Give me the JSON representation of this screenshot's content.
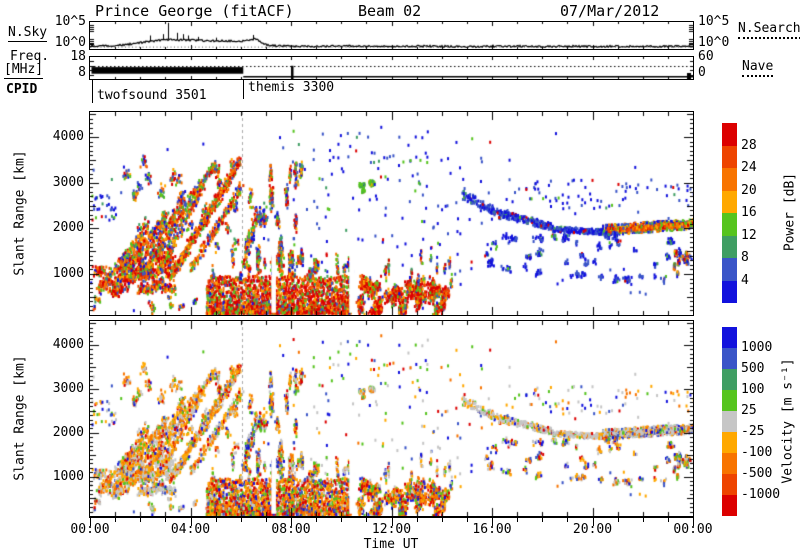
{
  "header": {
    "title": "Prince George (fitACF)",
    "beam": "Beam 02",
    "date": "07/Mar/2012"
  },
  "panels": {
    "nsky": {
      "label_left": "N.Sky",
      "label_right": "N.Search",
      "yticks_left": [
        "10^5",
        "10^0"
      ],
      "yticks_right": [
        "10^5",
        "10^0"
      ]
    },
    "freq": {
      "label_left_1": "Freq.",
      "label_left_2": "[MHz]",
      "label_right": "Nave",
      "yticks_left": [
        "18",
        "8"
      ],
      "yticks_right": [
        "60",
        "0"
      ]
    },
    "cpid": {
      "label": "CPID",
      "programs": [
        {
          "start_hour": 0.08,
          "name": "twofsound 3501"
        },
        {
          "start_hour": 6.08,
          "name": "themis 3300"
        }
      ]
    },
    "power": {
      "ylabel": "Slant Range [km]",
      "yticks": [
        1000,
        2000,
        3000,
        4000
      ]
    },
    "velocity": {
      "ylabel": "Slant Range [km]",
      "yticks": [
        1000,
        2000,
        3000,
        4000
      ]
    }
  },
  "xaxis": {
    "label": "Time UT",
    "tick_labels": [
      "00:00",
      "04:00",
      "08:00",
      "12:00",
      "16:00",
      "20:00",
      "00:00"
    ],
    "hours": 24
  },
  "colorbars": {
    "power": {
      "title": "Power [dB]",
      "tick_labels": [
        "28",
        "24",
        "20",
        "16",
        "12",
        "8",
        "4"
      ],
      "segments": [
        "#dc0000",
        "#ee4400",
        "#f87400",
        "#ffa800",
        "#56c41e",
        "#3f9e63",
        "#3a55c8",
        "#1212dd"
      ]
    },
    "velocity": {
      "title": "Velocity [m s⁻¹]",
      "tick_labels": [
        "1000",
        "500",
        "100",
        "25",
        "-25",
        "-100",
        "-500",
        "-1000"
      ],
      "segments": [
        "#1212dd",
        "#3a55c8",
        "#3f9e63",
        "#56c41e",
        "#c6c6c6",
        "#ffa800",
        "#f87400",
        "#ee4400",
        "#dc0000"
      ]
    }
  },
  "chart_data": {
    "type": "heatmap",
    "title": "SuperDARN Prince George fitACF range-time summary, Beam 02, 07/Mar/2012",
    "x_axis": {
      "label": "Time UT",
      "min_hour": 0,
      "max_hour": 24,
      "major_tick_hours": 4,
      "minor_tick_hours": 1
    },
    "range_axis": {
      "label": "Slant Range [km]",
      "min": 100,
      "max": 4550,
      "major_ticks": [
        1000,
        2000,
        3000,
        4000
      ]
    },
    "power_scale_db": [
      4,
      8,
      12,
      16,
      20,
      24,
      28
    ],
    "velocity_scale_ms": [
      -1000,
      -500,
      -100,
      -25,
      25,
      100,
      500,
      1000
    ],
    "mode_change_hour": 6.05,
    "nsky": {
      "axis": [
        "10^0",
        "10^5"
      ],
      "nsearch_frac": 0.93,
      "points": [
        [
          0,
          0.1
        ],
        [
          0.7,
          0.12
        ],
        [
          1.2,
          0.14
        ],
        [
          1.8,
          0.2
        ],
        [
          2.2,
          0.26
        ],
        [
          2.6,
          0.3
        ],
        [
          3.0,
          0.34
        ],
        [
          3.2,
          0.36
        ],
        [
          3.5,
          0.33
        ],
        [
          3.8,
          0.34
        ],
        [
          4.2,
          0.33
        ],
        [
          4.6,
          0.3
        ],
        [
          5.0,
          0.3
        ],
        [
          5.4,
          0.31
        ],
        [
          5.8,
          0.29
        ],
        [
          6.1,
          0.3
        ],
        [
          6.4,
          0.35
        ],
        [
          6.6,
          0.38
        ],
        [
          6.8,
          0.26
        ],
        [
          7.0,
          0.16
        ],
        [
          7.4,
          0.12
        ],
        [
          8,
          0.1
        ],
        [
          9,
          0.1
        ],
        [
          10,
          0.11
        ],
        [
          11,
          0.1
        ],
        [
          12,
          0.1
        ],
        [
          13,
          0.11
        ],
        [
          14,
          0.1
        ],
        [
          15,
          0.08
        ],
        [
          16,
          0.1
        ],
        [
          17,
          0.1
        ],
        [
          18,
          0.09
        ],
        [
          19,
          0.1
        ],
        [
          20,
          0.09
        ],
        [
          21,
          0.1
        ],
        [
          22,
          0.09
        ],
        [
          23,
          0.1
        ],
        [
          24,
          0.1
        ]
      ],
      "spikes": [
        [
          2.4,
          0.5
        ],
        [
          2.9,
          0.55
        ],
        [
          3.1,
          0.97
        ],
        [
          3.45,
          0.6
        ],
        [
          3.7,
          0.55
        ],
        [
          3.9,
          0.5
        ],
        [
          4.3,
          0.45
        ],
        [
          5.0,
          0.42
        ],
        [
          6.5,
          0.52
        ]
      ]
    },
    "freq": {
      "axis_mhz": [
        8,
        18
      ],
      "band": {
        "t0": 0.06,
        "t1": 6.1,
        "top_frac": 0.46,
        "bot_frac": 0.76
      },
      "nave_frac": 0.4,
      "post_freq_frac": 0.88,
      "post_freq_t0": 6.1,
      "blip_hour": 8.0
    },
    "colors": {
      "red": "#dc0000",
      "orangered": "#ee4400",
      "orange": "#f87400",
      "amber": "#ffa800",
      "green": "#56c41e",
      "teal": "#3f9e63",
      "blue": "#3a55c8",
      "dblue": "#1212dd",
      "grey": "#c6c6c6"
    },
    "palettes": {
      "p_hot": [
        [
          "red",
          38
        ],
        [
          "orangered",
          16
        ],
        [
          "orange",
          14
        ],
        [
          "amber",
          8
        ],
        [
          "green",
          8
        ],
        [
          "teal",
          4
        ],
        [
          "blue",
          8
        ],
        [
          "dblue",
          4
        ]
      ],
      "p_lowdense": [
        [
          "red",
          40
        ],
        [
          "orangered",
          16
        ],
        [
          "orange",
          12
        ],
        [
          "amber",
          8
        ],
        [
          "green",
          12
        ],
        [
          "teal",
          5
        ],
        [
          "blue",
          5
        ],
        [
          "dblue",
          2
        ]
      ],
      "p_mix": [
        [
          "red",
          12
        ],
        [
          "orangered",
          10
        ],
        [
          "orange",
          16
        ],
        [
          "amber",
          10
        ],
        [
          "green",
          16
        ],
        [
          "teal",
          8
        ],
        [
          "blue",
          16
        ],
        [
          "dblue",
          12
        ]
      ],
      "p_streak": [
        [
          "red",
          18
        ],
        [
          "orangered",
          12
        ],
        [
          "orange",
          22
        ],
        [
          "amber",
          12
        ],
        [
          "green",
          14
        ],
        [
          "teal",
          6
        ],
        [
          "blue",
          10
        ],
        [
          "dblue",
          6
        ]
      ],
      "p_streak_core": [
        [
          "red",
          30
        ],
        [
          "orangered",
          20
        ],
        [
          "orange",
          24
        ],
        [
          "amber",
          10
        ],
        [
          "green",
          8
        ],
        [
          "teal",
          4
        ],
        [
          "blue",
          4
        ]
      ],
      "p_blue": [
        [
          "dblue",
          52
        ],
        [
          "blue",
          34
        ],
        [
          "teal",
          5
        ],
        [
          "green",
          5
        ],
        [
          "red",
          4
        ]
      ],
      "p_green": [
        [
          "green",
          55
        ],
        [
          "teal",
          22
        ],
        [
          "blue",
          8
        ],
        [
          "dblue",
          5
        ],
        [
          "amber",
          10
        ]
      ],
      "p_band_outer": [
        [
          "green",
          22
        ],
        [
          "teal",
          8
        ],
        [
          "blue",
          18
        ],
        [
          "dblue",
          14
        ],
        [
          "orange",
          14
        ],
        [
          "amber",
          12
        ],
        [
          "red",
          6
        ],
        [
          "orangered",
          6
        ]
      ],
      "p_band_core": [
        [
          "red",
          22
        ],
        [
          "orangered",
          22
        ],
        [
          "orange",
          26
        ],
        [
          "amber",
          16
        ],
        [
          "green",
          10
        ],
        [
          "blue",
          4
        ]
      ],
      "v_grey": [
        [
          "grey",
          58
        ],
        [
          "amber",
          14
        ],
        [
          "orange",
          10
        ],
        [
          "green",
          6
        ],
        [
          "blue",
          5
        ],
        [
          "red",
          4
        ],
        [
          "dblue",
          3
        ]
      ],
      "v_streak": [
        [
          "amber",
          30
        ],
        [
          "orange",
          24
        ],
        [
          "grey",
          24
        ],
        [
          "red",
          8
        ],
        [
          "green",
          7
        ],
        [
          "blue",
          4
        ],
        [
          "dblue",
          3
        ]
      ],
      "v_low": [
        [
          "orange",
          24
        ],
        [
          "red",
          22
        ],
        [
          "amber",
          20
        ],
        [
          "green",
          14
        ],
        [
          "grey",
          8
        ],
        [
          "blue",
          6
        ],
        [
          "dblue",
          6
        ]
      ],
      "v_mix": [
        [
          "grey",
          20
        ],
        [
          "amber",
          18
        ],
        [
          "orange",
          14
        ],
        [
          "green",
          16
        ],
        [
          "blue",
          12
        ],
        [
          "dblue",
          10
        ],
        [
          "red",
          10
        ]
      ],
      "v_band": [
        [
          "grey",
          52
        ],
        [
          "amber",
          13
        ],
        [
          "orange",
          9
        ],
        [
          "blue",
          8
        ],
        [
          "dblue",
          7
        ],
        [
          "green",
          6
        ],
        [
          "red",
          5
        ]
      ],
      "v_green": [
        [
          "grey",
          38
        ],
        [
          "green",
          28
        ],
        [
          "amber",
          18
        ],
        [
          "orange",
          8
        ],
        [
          "blue",
          8
        ]
      ]
    },
    "features": [
      {
        "kind": "box",
        "t0": 0.1,
        "t1": 3.6,
        "r0": 580,
        "r1": 1500,
        "n": 950,
        "clumps": 22,
        "st": 0.45,
        "sr": 170,
        "pp": "p_hot",
        "pv": "v_grey"
      },
      {
        "kind": "box",
        "t0": 0.05,
        "t1": 1.0,
        "r0": 2200,
        "r1": 2750,
        "n": 30,
        "pp": "p_blue",
        "pv": "v_mix"
      },
      {
        "kind": "line",
        "t0": 0.3,
        "r0": 650,
        "t1": 2.2,
        "r1": 2000,
        "n": 200,
        "jt": 0.1,
        "jr": 90,
        "pp": "p_streak",
        "pv": "v_streak"
      },
      {
        "kind": "line",
        "t0": 0.9,
        "r0": 700,
        "t1": 3.0,
        "r1": 2350,
        "n": 230,
        "jt": 0.1,
        "jr": 95,
        "pp": "p_streak",
        "pv": "v_streak"
      },
      {
        "kind": "line",
        "t0": 1.5,
        "r0": 820,
        "t1": 3.7,
        "r1": 2650,
        "n": 220,
        "jt": 0.1,
        "jr": 95,
        "pp": "p_streak",
        "pv": "v_streak"
      },
      {
        "kind": "line",
        "t0": 2.0,
        "r0": 900,
        "t1": 4.4,
        "r1": 3050,
        "n": 230,
        "jt": 0.1,
        "jr": 100,
        "pp": "p_streak",
        "pv": "v_streak"
      },
      {
        "kind": "line",
        "t0": 2.6,
        "r0": 950,
        "t1": 4.9,
        "r1": 3450,
        "n": 240,
        "jt": 0.1,
        "jr": 100,
        "pp": "p_streak",
        "pv": "v_streak"
      },
      {
        "kind": "line",
        "t0": 3.2,
        "r0": 1000,
        "t1": 5.95,
        "r1": 3500,
        "n": 380,
        "jt": 0.09,
        "jr": 130,
        "pp": "p_streak",
        "pv": "v_streak"
      },
      {
        "kind": "line",
        "t0": 3.25,
        "r0": 1050,
        "t1": 5.9,
        "r1": 3450,
        "n": 210,
        "jt": 0.05,
        "jr": 45,
        "pp": "p_streak_core",
        "pv": "v_streak"
      },
      {
        "kind": "line",
        "t0": 4.0,
        "r0": 1150,
        "t1": 6.0,
        "r1": 2950,
        "n": 190,
        "jt": 0.09,
        "jr": 90,
        "pp": "p_streak",
        "pv": "v_streak"
      },
      {
        "kind": "box",
        "t0": 1.3,
        "t1": 5.9,
        "r0": 1500,
        "r1": 3620,
        "n": 420,
        "clumps": 30,
        "st": 0.18,
        "sr": 220,
        "pp": "p_mix",
        "pv": "v_streak"
      },
      {
        "kind": "box",
        "t0": 4.6,
        "t1": 10.35,
        "r0": 170,
        "r1": 980,
        "n": 2400,
        "bottom": 1,
        "pp": "p_lowdense",
        "pv": "v_low"
      },
      {
        "kind": "box",
        "t0": 4.8,
        "t1": 10.3,
        "r0": 950,
        "r1": 1450,
        "n": 230,
        "clumps": 16,
        "st": 0.07,
        "sr": 260,
        "pp": "p_mix",
        "pv": "v_mix"
      },
      {
        "kind": "box",
        "t0": 10.55,
        "t1": 14.5,
        "r0": 170,
        "r1": 820,
        "n": 1250,
        "bottom": 1,
        "clumps": 34,
        "st": 0.22,
        "sr": 230,
        "pp": "p_lowdense",
        "pv": "v_low"
      },
      {
        "kind": "box",
        "t0": 11.3,
        "t1": 14.4,
        "r0": 800,
        "r1": 1380,
        "n": 120,
        "clumps": 12,
        "st": 0.06,
        "sr": 220,
        "pp": "p_mix",
        "pv": "v_mix"
      },
      {
        "kind": "box",
        "t0": 6.05,
        "t1": 7.6,
        "r0": 1300,
        "r1": 3300,
        "n": 420,
        "clumps": 14,
        "st": 0.12,
        "sr": 330,
        "pp": "p_mix",
        "pv": "v_mix"
      },
      {
        "kind": "box",
        "t0": 6.1,
        "t1": 9.2,
        "r0": 950,
        "r1": 1550,
        "n": 230,
        "clumps": 16,
        "st": 0.12,
        "sr": 180,
        "pp": "p_streak",
        "pv": "v_mix"
      },
      {
        "kind": "box",
        "t0": 7.7,
        "t1": 8.5,
        "r0": 2100,
        "r1": 3350,
        "n": 150,
        "clumps": 8,
        "st": 0.1,
        "sr": 260,
        "pp": "p_mix",
        "pv": "v_mix"
      },
      {
        "kind": "box",
        "t0": 10.7,
        "t1": 11.35,
        "r0": 2820,
        "r1": 3160,
        "n": 90,
        "clumps": 5,
        "st": 0.08,
        "sr": 90,
        "pp": "p_green",
        "pv": "v_green"
      },
      {
        "kind": "box",
        "t0": 8.0,
        "t1": 16.0,
        "r0": 950,
        "r1": 4150,
        "n": 150,
        "pp": "p_blue",
        "pv": "v_mix"
      },
      {
        "kind": "line",
        "t0": 14.8,
        "r0": 2780,
        "t1": 16.3,
        "r1": 2320,
        "n": 110,
        "jt": 0.06,
        "jr": 90,
        "pp": "p_blue",
        "pv": "v_grey"
      },
      {
        "kind": "line",
        "t0": 16.3,
        "r0": 2350,
        "t1": 18.4,
        "r1": 2060,
        "n": 190,
        "jt": 0.07,
        "jr": 80,
        "pp": "p_blue",
        "pv": "v_grey"
      },
      {
        "kind": "line",
        "t0": 18.4,
        "r0": 2010,
        "t1": 20.5,
        "r1": 1950,
        "n": 190,
        "jt": 0.07,
        "jr": 60,
        "pp": "p_blue",
        "pv": "v_grey"
      },
      {
        "kind": "line",
        "t0": 20.4,
        "r0": 1990,
        "t1": 24,
        "r1": 2130,
        "n": 520,
        "jt": 0.06,
        "jr": 110,
        "pp": "p_band_outer",
        "pv": "v_band"
      },
      {
        "kind": "line",
        "t0": 20.6,
        "r0": 1990,
        "t1": 24,
        "r1": 2120,
        "n": 430,
        "jt": 0.05,
        "jr": 40,
        "pp": "p_band_core",
        "pv": "v_band"
      },
      {
        "kind": "box",
        "t0": 15.6,
        "t1": 24,
        "r0": 860,
        "r1": 1900,
        "n": 400,
        "clumps": 46,
        "st": 0.16,
        "sr": 120,
        "pp": "p_blue",
        "pv": "v_mix"
      },
      {
        "kind": "box",
        "t0": 0.1,
        "t1": 6.0,
        "r0": 200,
        "r1": 560,
        "n": 110,
        "clumps": 16,
        "st": 0.1,
        "sr": 90,
        "pp": "p_mix",
        "pv": "v_grey"
      },
      {
        "kind": "box",
        "t0": 16.2,
        "t1": 24,
        "r0": 2350,
        "r1": 3100,
        "n": 80,
        "pp": "p_blue",
        "pv": "v_mix"
      },
      {
        "kind": "box",
        "t0": 23.0,
        "t1": 24,
        "r0": 1050,
        "r1": 1560,
        "n": 150,
        "clumps": 9,
        "st": 0.07,
        "sr": 110,
        "pp": "p_mix",
        "pv": "v_mix"
      },
      {
        "kind": "box",
        "t0": 0,
        "t1": 24,
        "r0": 150,
        "r1": 4400,
        "n": 60,
        "pp": "p_blue",
        "pv": "v_mix"
      }
    ],
    "gaps": [
      {
        "t0": 7.22,
        "t1": 7.4,
        "r0": 150,
        "r1": 1500
      },
      {
        "t0": 10.32,
        "t1": 10.54,
        "r0": 150,
        "r1": 1500
      }
    ]
  }
}
